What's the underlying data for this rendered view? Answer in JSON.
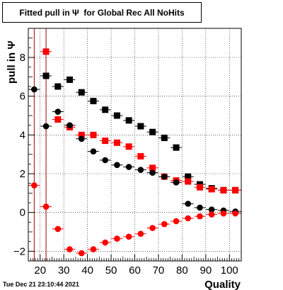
{
  "chart_data": {
    "type": "scatter",
    "title": "Fitted pull in Ψ  for Global Rec All NoHits",
    "xlabel": "Quality",
    "ylabel": "pull in Ψ",
    "xlim": [
      15,
      105
    ],
    "ylim": [
      -2.5,
      9.5
    ],
    "xticks": [
      20,
      30,
      40,
      50,
      60,
      70,
      80,
      90,
      100
    ],
    "yticks": [
      -2,
      0,
      2,
      4,
      6,
      8
    ],
    "grid": true,
    "legend": "none",
    "series": [
      {
        "marker": "square",
        "color": "#000000",
        "points": [
          [
            22.5,
            7.05
          ],
          [
            27.5,
            6.5
          ],
          [
            32.5,
            6.85
          ],
          [
            37.5,
            6.2
          ],
          [
            42.5,
            5.75
          ],
          [
            47.5,
            5.3
          ],
          [
            52.5,
            5.0
          ],
          [
            57.5,
            4.75
          ],
          [
            62.5,
            4.45
          ],
          [
            67.5,
            4.15
          ],
          [
            72.5,
            3.85
          ],
          [
            77.5,
            3.35
          ],
          [
            82.5,
            1.85
          ],
          [
            87.5,
            1.45
          ],
          [
            92.5,
            1.25
          ],
          [
            97.5,
            1.15
          ],
          [
            102.5,
            1.15
          ]
        ]
      },
      {
        "marker": "square",
        "color": "#ff0000",
        "points": [
          [
            22.5,
            8.3
          ],
          [
            27.5,
            4.8
          ],
          [
            32.5,
            4.4
          ],
          [
            37.5,
            4.0
          ],
          [
            42.5,
            4.0
          ],
          [
            47.5,
            3.7
          ],
          [
            52.5,
            3.6
          ],
          [
            57.5,
            3.4
          ],
          [
            62.5,
            2.9
          ],
          [
            67.5,
            2.3
          ],
          [
            72.5,
            1.85
          ],
          [
            77.5,
            1.65
          ],
          [
            82.5,
            1.6
          ],
          [
            87.5,
            1.3
          ],
          [
            92.5,
            1.2
          ],
          [
            97.5,
            1.15
          ],
          [
            102.5,
            1.15
          ]
        ]
      },
      {
        "marker": "circle",
        "color": "#000000",
        "points": [
          [
            17.5,
            6.35
          ],
          [
            22.5,
            4.45
          ],
          [
            27.5,
            5.2
          ],
          [
            32.5,
            4.5
          ],
          [
            37.5,
            3.8
          ],
          [
            42.5,
            3.15
          ],
          [
            47.5,
            2.7
          ],
          [
            52.5,
            2.45
          ],
          [
            57.5,
            2.35
          ],
          [
            62.5,
            2.2
          ],
          [
            67.5,
            2.05
          ],
          [
            72.5,
            1.85
          ],
          [
            77.5,
            1.55
          ],
          [
            82.5,
            0.45
          ],
          [
            87.5,
            0.25
          ],
          [
            92.5,
            0.15
          ],
          [
            97.5,
            0.1
          ],
          [
            102.5,
            0.05
          ]
        ]
      },
      {
        "marker": "circle",
        "color": "#ff0000",
        "points": [
          [
            17.5,
            1.4
          ],
          [
            22.5,
            0.3
          ],
          [
            27.5,
            -0.85
          ],
          [
            32.5,
            -1.9
          ],
          [
            37.5,
            -2.1
          ],
          [
            42.5,
            -1.9
          ],
          [
            47.5,
            -1.55
          ],
          [
            52.5,
            -1.35
          ],
          [
            57.5,
            -1.25
          ],
          [
            62.5,
            -1.1
          ],
          [
            67.5,
            -0.8
          ],
          [
            72.5,
            -0.6
          ],
          [
            77.5,
            -0.45
          ],
          [
            82.5,
            -0.3
          ],
          [
            87.5,
            -0.2
          ],
          [
            92.5,
            -0.1
          ],
          [
            97.5,
            -0.05
          ],
          [
            102.5,
            -0.05
          ]
        ]
      }
    ],
    "vertical_lines": [
      {
        "x": 17.5,
        "color": "#a00000",
        "kind": "error-bar"
      },
      {
        "x": 22.5,
        "color": "#a00000",
        "kind": "error-bar"
      }
    ]
  },
  "footer": {
    "timestamp": "Tue Dec 21 23:10:44 2021"
  }
}
